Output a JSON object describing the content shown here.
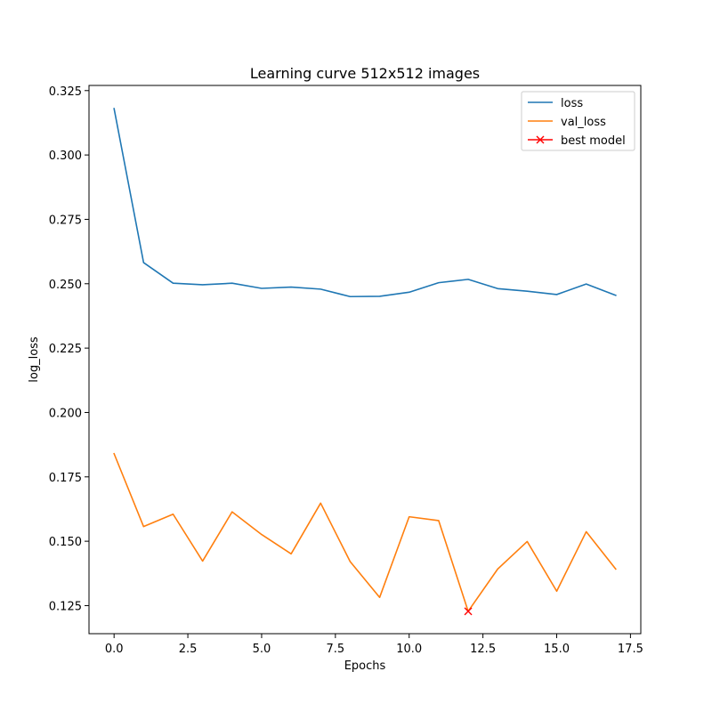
{
  "chart_data": {
    "type": "line",
    "title": "Learning curve 512x512 images",
    "xlabel": "Epochs",
    "ylabel": "log_loss",
    "xlim": [
      -0.85,
      17.85
    ],
    "ylim": [
      0.1141,
      0.327
    ],
    "xticks": [
      0.0,
      2.5,
      5.0,
      7.5,
      10.0,
      12.5,
      15.0,
      17.5
    ],
    "xtick_labels": [
      "0.0",
      "2.5",
      "5.0",
      "7.5",
      "10.0",
      "12.5",
      "15.0",
      "17.5"
    ],
    "yticks": [
      0.125,
      0.15,
      0.175,
      0.2,
      0.225,
      0.25,
      0.275,
      0.3,
      0.325
    ],
    "ytick_labels": [
      "0.125",
      "0.150",
      "0.175",
      "0.200",
      "0.225",
      "0.250",
      "0.275",
      "0.300",
      "0.325"
    ],
    "grid": false,
    "legend_position": "top-right",
    "series": [
      {
        "name": "loss",
        "color": "#1f77b4",
        "x": [
          0,
          1,
          2,
          3,
          4,
          5,
          6,
          7,
          8,
          9,
          10,
          11,
          12,
          13,
          14,
          15,
          16,
          17
        ],
        "values": [
          0.318,
          0.2582,
          0.2502,
          0.2496,
          0.2502,
          0.2482,
          0.2487,
          0.2479,
          0.245,
          0.2451,
          0.2467,
          0.2504,
          0.2517,
          0.2481,
          0.2471,
          0.2458,
          0.2499,
          0.2455
        ]
      },
      {
        "name": "val_loss",
        "color": "#ff7f0e",
        "x": [
          0,
          1,
          2,
          3,
          4,
          5,
          6,
          7,
          8,
          9,
          10,
          11,
          12,
          13,
          14,
          15,
          16,
          17
        ],
        "values": [
          0.184,
          0.1557,
          0.1605,
          0.1423,
          0.1614,
          0.1526,
          0.1451,
          0.1648,
          0.1421,
          0.1282,
          0.1595,
          0.158,
          0.1228,
          0.1392,
          0.1499,
          0.1306,
          0.1537,
          0.1392
        ]
      }
    ],
    "markers": [
      {
        "name": "best model",
        "color": "#ff0000",
        "marker": "x",
        "x": 12,
        "y": 0.1228
      }
    ],
    "legend": [
      "loss",
      "val_loss",
      "best model"
    ]
  }
}
